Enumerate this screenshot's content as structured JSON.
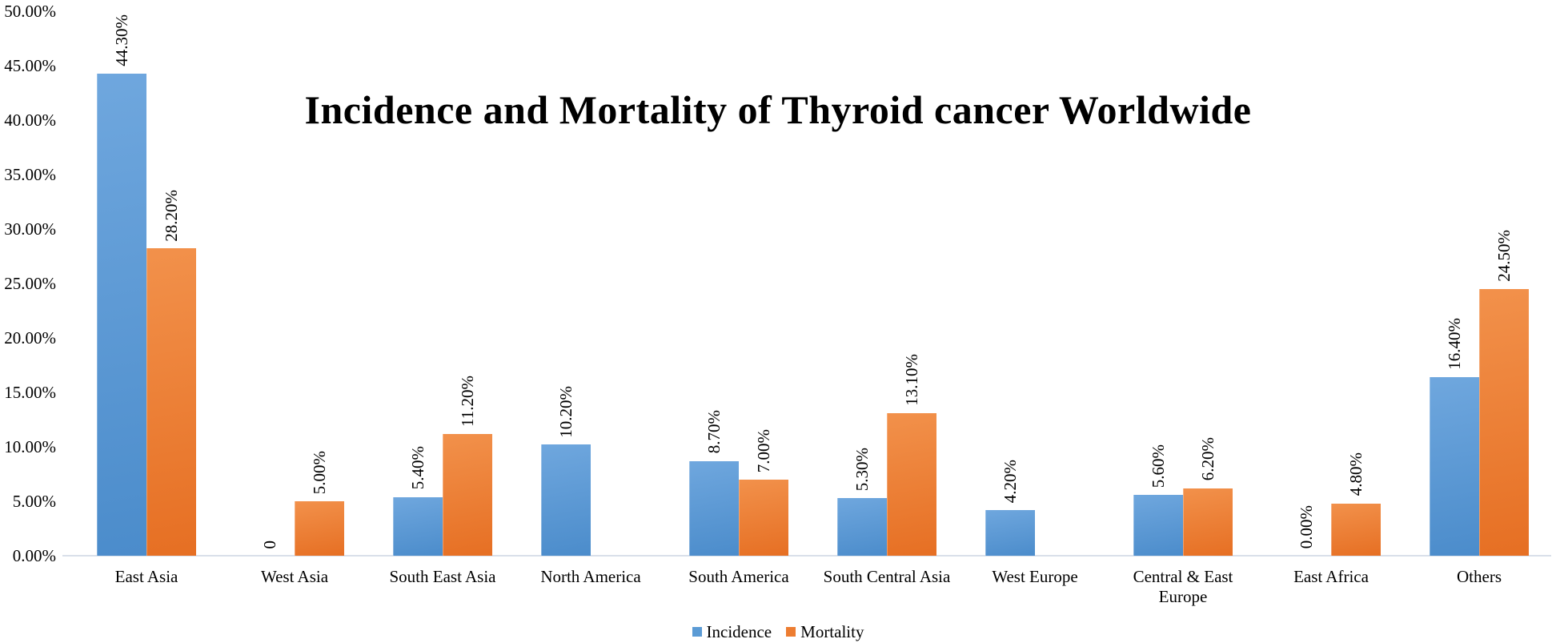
{
  "chart_data": {
    "type": "bar",
    "title": "Incidence and Mortality of Thyroid cancer Worldwide",
    "categories": [
      "East Asia",
      "West Asia",
      "South East Asia",
      "North America",
      "South America",
      "South Central Asia",
      "West Europe",
      "Central & East Europe",
      "East Africa",
      "Others"
    ],
    "series": [
      {
        "name": "Incidence",
        "color": "#5B9BD5",
        "color_light": "#6FA7DE",
        "color_dark": "#4B8CCB",
        "values": [
          44.3,
          0,
          5.4,
          10.2,
          8.7,
          5.3,
          4.2,
          5.6,
          0,
          16.4
        ],
        "labels": [
          "44.30%",
          "0",
          "5.40%",
          "10.20%",
          "8.70%",
          "5.30%",
          "4.20%",
          "5.60%",
          "0.00%",
          "16.40%"
        ]
      },
      {
        "name": "Mortality",
        "color": "#ED7D31",
        "color_light": "#F2914B",
        "color_dark": "#E66F23",
        "values": [
          28.2,
          5.0,
          11.2,
          null,
          7.0,
          13.1,
          null,
          6.2,
          4.8,
          24.5
        ],
        "labels": [
          "28.20%",
          "5.00%",
          "11.20%",
          null,
          "7.00%",
          "13.10%",
          null,
          "6.20%",
          "4.80%",
          "24.50%"
        ]
      }
    ],
    "ylabel": "",
    "xlabel": "",
    "ylim": [
      0,
      50
    ],
    "yticks": [
      {
        "v": 0,
        "label": "0.00%"
      },
      {
        "v": 5,
        "label": "5.00%"
      },
      {
        "v": 10,
        "label": "10.00%"
      },
      {
        "v": 15,
        "label": "15.00%"
      },
      {
        "v": 20,
        "label": "20.00%"
      },
      {
        "v": 25,
        "label": "25.00%"
      },
      {
        "v": 30,
        "label": "30.00%"
      },
      {
        "v": 35,
        "label": "35.00%"
      },
      {
        "v": 40,
        "label": "40.00%"
      },
      {
        "v": 45,
        "label": "45.00%"
      },
      {
        "v": 50,
        "label": "50.00%"
      }
    ],
    "grid": false,
    "legend_position": "bottom",
    "data_label_rotation": "vertical"
  }
}
